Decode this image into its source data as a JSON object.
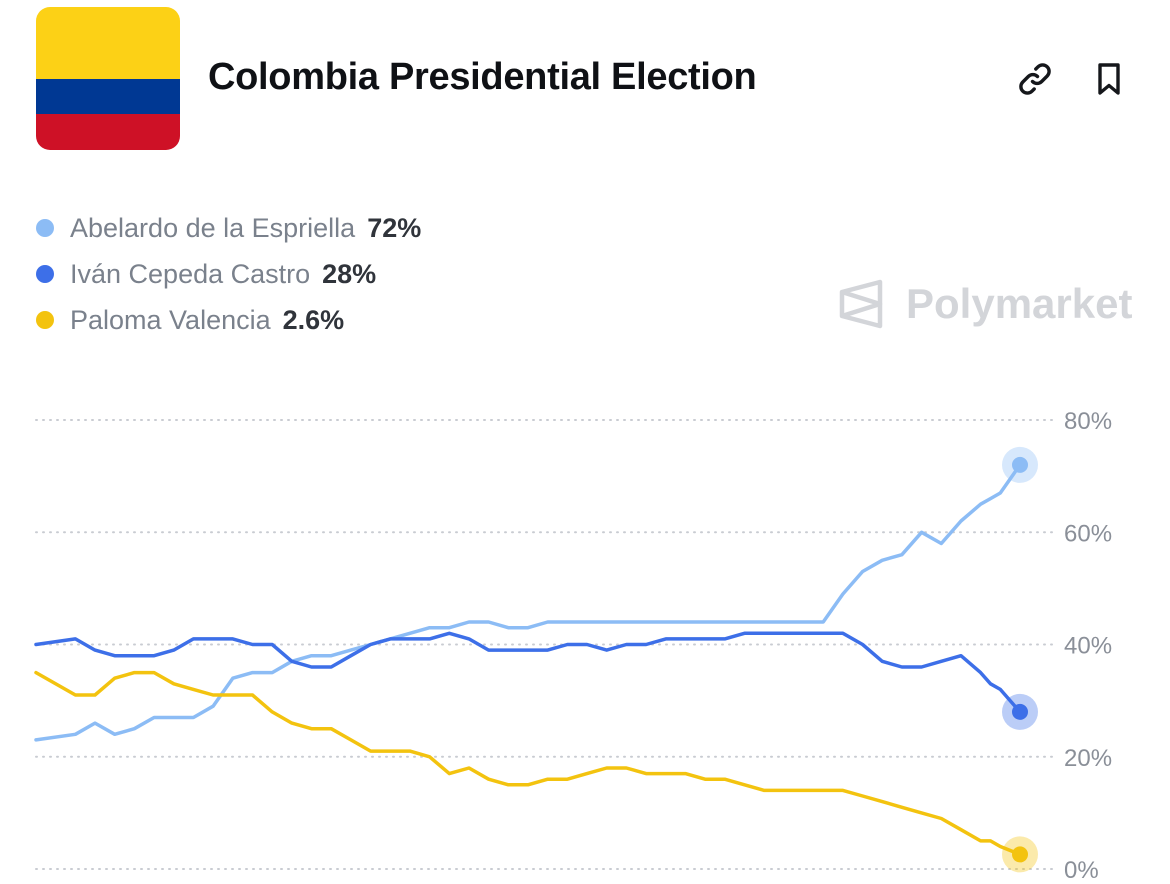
{
  "header": {
    "title": "Colombia Presidential Election",
    "flag": {
      "colors": [
        "#FCD116",
        "#003893",
        "#CE1126"
      ]
    },
    "actions": [
      {
        "name": "link-icon"
      },
      {
        "name": "bookmark-icon"
      }
    ]
  },
  "watermark": {
    "text": "Polymarket",
    "icon": "polymarket-logo-icon"
  },
  "chart_data": {
    "type": "line",
    "title": "",
    "xlabel": "",
    "ylabel": "",
    "ylim": [
      0,
      80
    ],
    "yticks": [
      0,
      20,
      40,
      60,
      80
    ],
    "ytick_labels": [
      "0%",
      "20%",
      "40%",
      "60%",
      "80%"
    ],
    "grid": true,
    "legend_position": "top-left",
    "x": [
      0,
      4,
      6,
      8,
      10,
      12,
      14,
      16,
      18,
      20,
      22,
      24,
      26,
      28,
      30,
      32,
      34,
      36,
      38,
      40,
      42,
      44,
      46,
      48,
      50,
      52,
      54,
      56,
      58,
      60,
      62,
      64,
      66,
      68,
      70,
      72,
      74,
      76,
      78,
      80,
      82,
      84,
      86,
      88,
      90,
      92,
      94,
      96,
      97,
      98,
      100
    ],
    "series": [
      {
        "name": "Abelardo de la Espriella",
        "value_label": "72%",
        "color": "#8cbcf5",
        "values": [
          23,
          24,
          26,
          24,
          25,
          27,
          27,
          27,
          29,
          34,
          35,
          35,
          37,
          38,
          38,
          39,
          40,
          41,
          42,
          43,
          43,
          44,
          44,
          43,
          43,
          44,
          44,
          44,
          44,
          44,
          44,
          44,
          44,
          44,
          44,
          44,
          44,
          44,
          44,
          44,
          49,
          53,
          55,
          56,
          60,
          58,
          62,
          65,
          66,
          67,
          72
        ]
      },
      {
        "name": "Iván Cepeda Castro",
        "value_label": "28%",
        "color": "#3d6fe8",
        "values": [
          40,
          41,
          39,
          38,
          38,
          38,
          39,
          41,
          41,
          41,
          40,
          40,
          37,
          36,
          36,
          38,
          40,
          41,
          41,
          41,
          42,
          41,
          39,
          39,
          39,
          39,
          40,
          40,
          39,
          40,
          40,
          41,
          41,
          41,
          41,
          42,
          42,
          42,
          42,
          42,
          42,
          40,
          37,
          36,
          36,
          37,
          38,
          35,
          33,
          32,
          28
        ]
      },
      {
        "name": "Paloma Valencia",
        "value_label": "2.6%",
        "color": "#f3c30f",
        "values": [
          35,
          31,
          31,
          34,
          35,
          35,
          33,
          32,
          31,
          31,
          31,
          28,
          26,
          25,
          25,
          23,
          21,
          21,
          21,
          20,
          17,
          18,
          16,
          15,
          15,
          16,
          16,
          17,
          18,
          18,
          17,
          17,
          17,
          16,
          16,
          15,
          14,
          14,
          14,
          14,
          14,
          13,
          12,
          11,
          10,
          9,
          7,
          5,
          5,
          4,
          2.6
        ]
      }
    ]
  }
}
